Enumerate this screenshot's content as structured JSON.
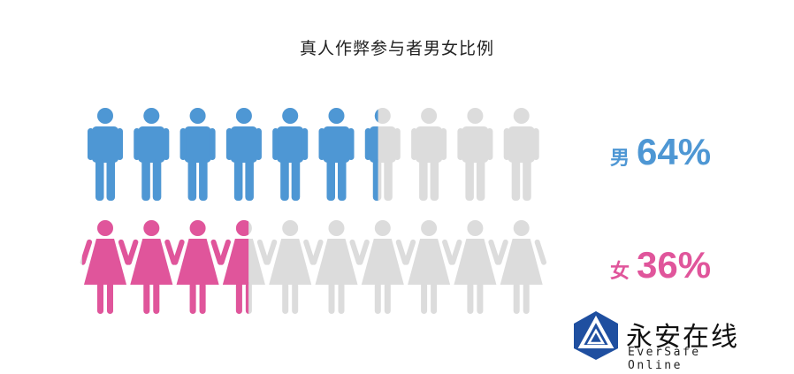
{
  "chart_data": {
    "type": "pictograph",
    "title": "真人作弊参与者男女比例",
    "icons_per_row": 10,
    "series": [
      {
        "name": "男",
        "value": 64,
        "label": "64%",
        "color": "#4e97d4"
      },
      {
        "name": "女",
        "value": 36,
        "label": "36%",
        "color": "#e0559b"
      }
    ],
    "empty_color": "#dcdcdc"
  },
  "logo": {
    "name": "永安在线",
    "subtitle": "EverSafe Online",
    "color": "#1f4fa0"
  }
}
